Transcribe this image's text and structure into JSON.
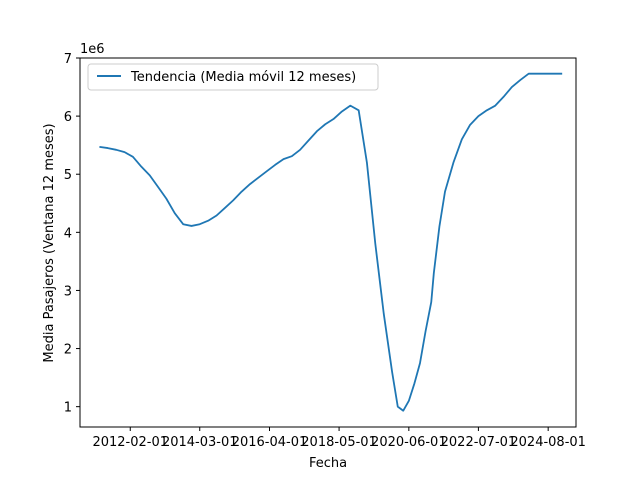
{
  "chart_data": {
    "type": "line",
    "xlabel": "Fecha",
    "ylabel": "Media Pasajeros (Ventana 12 meses)",
    "y_offset_text": "1e6",
    "legend_placement": "top-left",
    "grid": false,
    "xlim": [
      "2010-08-01",
      "2025-06-01"
    ],
    "ylim": [
      650000,
      7000000
    ],
    "x_ticks": [
      "2012-02-01",
      "2014-03-01",
      "2016-04-01",
      "2018-05-01",
      "2020-06-01",
      "2022-07-01",
      "2024-08-01"
    ],
    "y_ticks": [
      1,
      2,
      3,
      4,
      5,
      6,
      7
    ],
    "series": [
      {
        "name": "Tendencia (Media móvil 12 meses)",
        "color": "#1f77b4",
        "x": [
          "2011-03-01",
          "2011-06-01",
          "2011-09-01",
          "2011-12-01",
          "2012-03-01",
          "2012-06-01",
          "2012-09-01",
          "2012-12-01",
          "2013-03-01",
          "2013-06-01",
          "2013-09-01",
          "2013-12-01",
          "2014-03-01",
          "2014-06-01",
          "2014-09-01",
          "2014-12-01",
          "2015-03-01",
          "2015-06-01",
          "2015-09-01",
          "2015-12-01",
          "2016-03-01",
          "2016-06-01",
          "2016-09-01",
          "2016-12-01",
          "2017-03-01",
          "2017-06-01",
          "2017-09-01",
          "2017-12-01",
          "2018-03-01",
          "2018-06-01",
          "2018-09-01",
          "2018-12-01",
          "2019-03-01",
          "2019-06-01",
          "2019-09-01",
          "2019-12-01",
          "2020-02-01",
          "2020-04-01",
          "2020-06-01",
          "2020-08-01",
          "2020-10-01",
          "2020-12-01",
          "2021-02-01",
          "2021-03-01",
          "2021-05-01",
          "2021-07-01",
          "2021-10-01",
          "2022-01-01",
          "2022-04-01",
          "2022-07-01",
          "2022-10-01",
          "2023-01-01",
          "2023-04-01",
          "2023-07-01",
          "2023-10-01",
          "2024-01-01",
          "2024-04-01",
          "2024-07-01",
          "2024-10-01",
          "2025-01-01"
        ],
        "values": [
          5470000,
          5450000,
          5420000,
          5380000,
          5300000,
          5130000,
          4980000,
          4780000,
          4580000,
          4330000,
          4140000,
          4110000,
          4140000,
          4200000,
          4290000,
          4420000,
          4550000,
          4700000,
          4830000,
          4940000,
          5050000,
          5160000,
          5260000,
          5310000,
          5420000,
          5580000,
          5740000,
          5860000,
          5950000,
          6080000,
          6180000,
          6100000,
          5200000,
          3800000,
          2600000,
          1600000,
          1000000,
          930000,
          1100000,
          1400000,
          1750000,
          2300000,
          2800000,
          3300000,
          4100000,
          4700000,
          5200000,
          5600000,
          5850000,
          6000000,
          6100000,
          6180000,
          6330000,
          6500000,
          6620000,
          6730000,
          6730000,
          6730000,
          6730000,
          6730000
        ]
      }
    ]
  }
}
